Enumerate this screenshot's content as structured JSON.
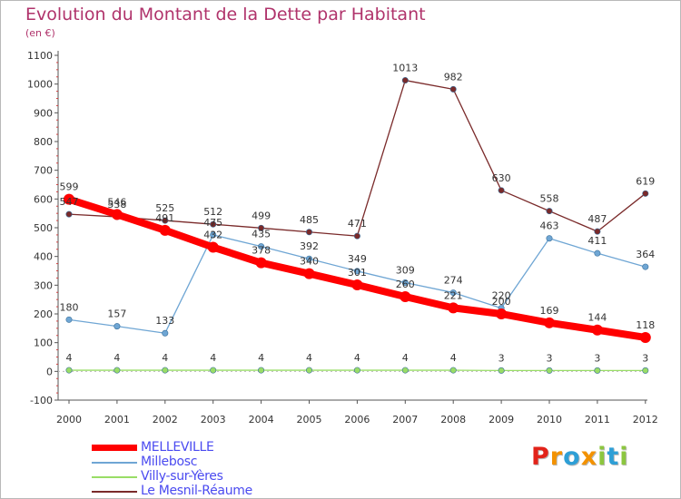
{
  "header": {
    "title": "Evolution du Montant de la Dette par Habitant",
    "unit": "(en €)"
  },
  "logo": {
    "text": "Proxiti",
    "letters": [
      {
        "char": "P",
        "color": "#e2231a"
      },
      {
        "char": "r",
        "color": "#f39200"
      },
      {
        "char": "o",
        "color": "#2e9fd6"
      },
      {
        "char": "x",
        "color": "#f39200"
      },
      {
        "char": "i",
        "color": "#8cc63f"
      },
      {
        "char": "t",
        "color": "#2e9fd6"
      },
      {
        "char": "i",
        "color": "#8cc63f"
      }
    ]
  },
  "chart_data": {
    "type": "line",
    "title": "Evolution du Montant de la Dette par Habitant",
    "subtitle": "(en €)",
    "x": [
      "2000",
      "2001",
      "2002",
      "2003",
      "2004",
      "2005",
      "2006",
      "2007",
      "2008",
      "2009",
      "2010",
      "2011",
      "2012"
    ],
    "ylim": [
      -100,
      1100
    ],
    "yticks": [
      "-100",
      "0",
      "100",
      "200",
      "300",
      "400",
      "500",
      "600",
      "700",
      "800",
      "900",
      "1000",
      "1100"
    ],
    "grid": false,
    "legend_position": "bottom-left",
    "series": [
      {
        "name": "MELLEVILLE",
        "color": "#ff0000",
        "values": [
          599,
          546,
          491,
          432,
          378,
          340,
          301,
          260,
          221,
          200,
          169,
          144,
          118
        ],
        "labels": [
          "599",
          "546",
          "491",
          "432",
          "378",
          "340",
          "301",
          "260",
          "221",
          "200",
          "169",
          "144",
          "118"
        ]
      },
      {
        "name": "Millebosc",
        "color": "#6fa6d4",
        "values": [
          180,
          157,
          133,
          475,
          435,
          392,
          349,
          309,
          274,
          220,
          463,
          411,
          364
        ],
        "labels": [
          "180",
          "157",
          "133",
          "475",
          "435",
          "392",
          "349",
          "309",
          "274",
          "220",
          "463",
          "411",
          "364"
        ]
      },
      {
        "name": "Villy-sur-Yères",
        "color": "#99dd66",
        "values": [
          4,
          4,
          4,
          4,
          4,
          4,
          4,
          4,
          4,
          3,
          3,
          3,
          3
        ],
        "labels": [
          "4",
          "4",
          "4",
          "4",
          "4",
          "4",
          "4",
          "4",
          "4",
          "3",
          "3",
          "3",
          "3"
        ]
      },
      {
        "name": "Le Mesnil-Réaume",
        "color": "#7a2a2a",
        "values": [
          547,
          538,
          525,
          512,
          499,
          485,
          471,
          1013,
          982,
          630,
          558,
          487,
          619
        ],
        "labels": [
          "547",
          "538",
          "525",
          "512",
          "499",
          "485",
          "471",
          "1013",
          "982",
          "630",
          "558",
          "487",
          "619"
        ]
      }
    ]
  }
}
